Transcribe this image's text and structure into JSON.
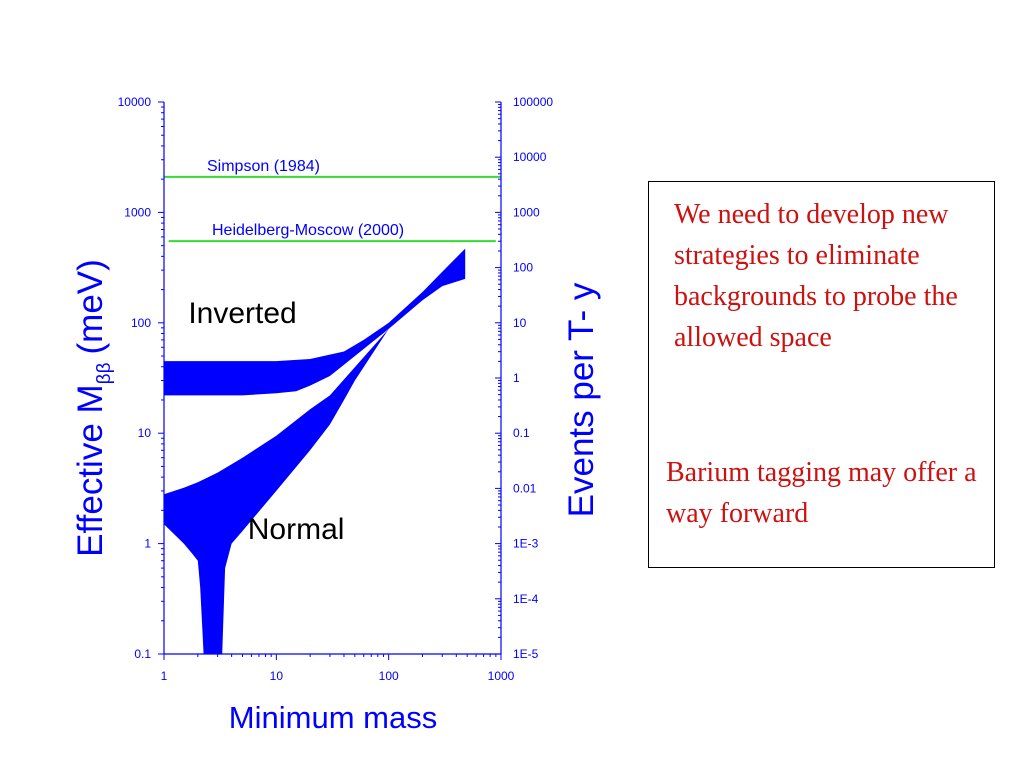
{
  "chart_data": {
    "type": "area",
    "title": "",
    "xlabel": "Minimum mass",
    "ylabel": "Effective M",
    "ylabel_subscript": "ββ",
    "ylabel_unit": "(meV)",
    "y2label": "Events per T- y",
    "xscale": "log",
    "yscale": "log",
    "xlim": [
      1,
      1000
    ],
    "ylim": [
      0.1,
      10000
    ],
    "y2lim": [
      1e-05,
      100000
    ],
    "x_ticks": [
      "1",
      "10",
      "100",
      "1000"
    ],
    "y_ticks": [
      "0.1",
      "1",
      "10",
      "100",
      "1000",
      "10000"
    ],
    "y2_ticks": [
      "1E-5",
      "1E-4",
      "1E-3",
      "0.01",
      "0.1",
      "1",
      "10",
      "100",
      "1000",
      "10000",
      "100000"
    ],
    "grid": false,
    "band_color": "#0000ff",
    "limit_color": "#33dd33",
    "reference_lines": [
      {
        "name": "Simpson (1984)",
        "y": 2100,
        "x_range": [
          1,
          1000
        ]
      },
      {
        "name": "Heidelberg-Moscow  (2000)",
        "y": 550,
        "x_range": [
          1.1,
          900
        ]
      }
    ],
    "region_labels": [
      {
        "text": "Inverted",
        "x": 5,
        "y": 100
      },
      {
        "text": "Normal",
        "x": 15,
        "y": 1.1
      }
    ],
    "series": [
      {
        "id": "inverted",
        "region": "Inverted",
        "upper": [
          [
            1,
            45
          ],
          [
            3,
            45
          ],
          [
            10,
            45
          ],
          [
            20,
            47
          ],
          [
            40,
            55
          ],
          [
            60,
            70
          ],
          [
            100,
            100
          ],
          [
            200,
            190
          ],
          [
            300,
            290
          ],
          [
            480,
            470
          ]
        ],
        "lower": [
          [
            1,
            22
          ],
          [
            5,
            22
          ],
          [
            10,
            23
          ],
          [
            15,
            24
          ],
          [
            20,
            27
          ],
          [
            30,
            33
          ],
          [
            50,
            50
          ],
          [
            100,
            88
          ],
          [
            200,
            160
          ],
          [
            300,
            215
          ],
          [
            480,
            250
          ]
        ]
      },
      {
        "id": "normal",
        "region": "Normal",
        "upper": [
          [
            1,
            2.8
          ],
          [
            1.5,
            3.2
          ],
          [
            2,
            3.6
          ],
          [
            3,
            4.4
          ],
          [
            5,
            6
          ],
          [
            10,
            9.5
          ],
          [
            20,
            16.5
          ],
          [
            30,
            22
          ]
        ],
        "lower": [
          [
            1,
            1.5
          ],
          [
            1.5,
            1.0
          ],
          [
            1.8,
            0.8
          ],
          [
            2,
            0.7
          ],
          [
            2.1,
            0.4
          ],
          [
            2.25,
            0.1
          ],
          [
            3.3,
            0.1
          ],
          [
            3.5,
            0.6
          ],
          [
            4,
            1.0
          ],
          [
            5,
            1.3
          ],
          [
            10,
            3.0
          ],
          [
            20,
            7
          ],
          [
            30,
            12
          ],
          [
            40,
            20
          ],
          [
            50,
            30
          ],
          [
            100,
            88
          ]
        ]
      }
    ]
  },
  "notes": {
    "text1": "We need to develop new strategies to eliminate backgrounds to probe the allowed space",
    "text2": "Barium tagging may offer a way forward",
    "text_color": "#cc1111"
  }
}
